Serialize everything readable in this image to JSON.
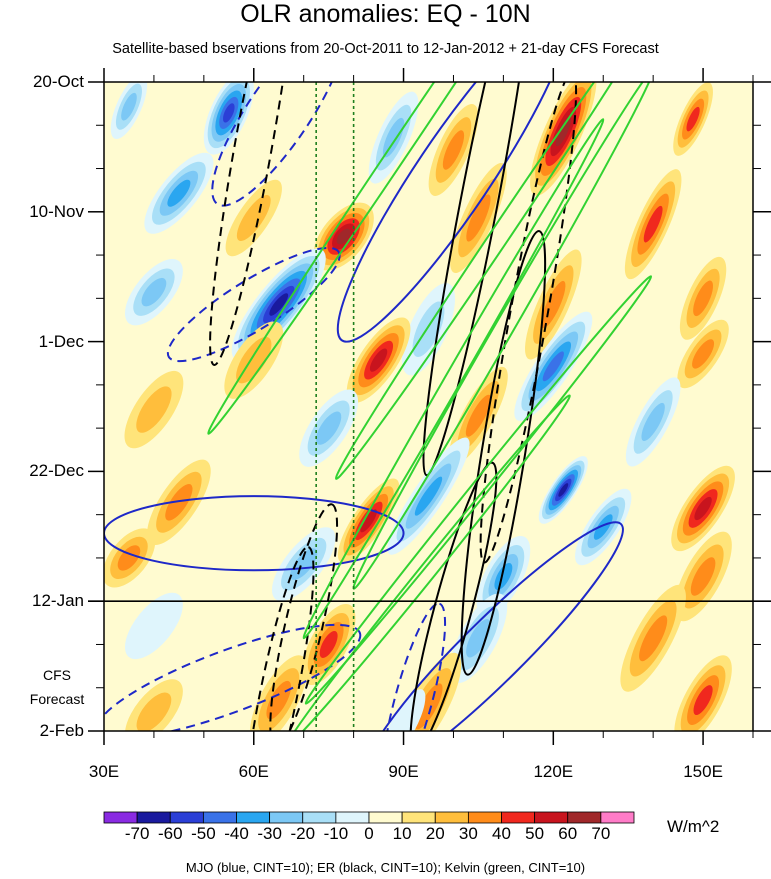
{
  "chart_data": {
    "type": "heatmap",
    "title": "OLR anomalies: EQ - 10N",
    "subtitle": "Satellite-based bservations from 20-Oct-2011 to 12-Jan-2012 + 21-day CFS Forecast",
    "x_axis": {
      "range": [
        30,
        160
      ],
      "ticks": [
        {
          "value": 30,
          "label": "30E"
        },
        {
          "value": 60,
          "label": "60E"
        },
        {
          "value": 90,
          "label": "90E"
        },
        {
          "value": 120,
          "label": "120E"
        },
        {
          "value": 150,
          "label": "150E"
        }
      ],
      "minor_step": 10
    },
    "y_axis": {
      "range_days": [
        0,
        105
      ],
      "direction": "top-to-bottom",
      "ticks": [
        {
          "day": 0,
          "label": "20-Oct"
        },
        {
          "day": 21,
          "label": "10-Nov"
        },
        {
          "day": 42,
          "label": "1-Dec"
        },
        {
          "day": 63,
          "label": "22-Dec"
        },
        {
          "day": 84,
          "label": "12-Jan"
        },
        {
          "day": 105,
          "label": "2-Feb"
        }
      ],
      "minor_step_days": 7
    },
    "forecast_start_day": 84,
    "forecast_label_line1": "CFS",
    "forecast_label_line2": "Forecast",
    "reference_longitudes": [
      72.5,
      80
    ],
    "colorbar": {
      "units": "W/m^2",
      "labels": [
        "-70",
        "-60",
        "-50",
        "-40",
        "-30",
        "-20",
        "-10",
        "0",
        "10",
        "20",
        "30",
        "40",
        "50",
        "60",
        "70"
      ],
      "colors": [
        "#8a2be2",
        "#1a1a9e",
        "#2b3fd6",
        "#3a72e8",
        "#2aa6f0",
        "#7cc8f5",
        "#a9dff7",
        "#dff5fc",
        "#fffbd0",
        "#ffe47a",
        "#ffbe3c",
        "#ff8c1a",
        "#f0281e",
        "#c8141e",
        "#a0282a",
        "#ff7cc8"
      ]
    },
    "anomaly_blobs": [
      {
        "lon": 55,
        "day": 5,
        "a": 9,
        "b": 3,
        "tilt": 0.18,
        "value": -60
      },
      {
        "lon": 35,
        "day": 4,
        "a": 7,
        "b": 2,
        "tilt": 0.18,
        "value": -30
      },
      {
        "lon": 88,
        "day": 9,
        "a": 10,
        "b": 2.5,
        "tilt": 0.18,
        "value": -30
      },
      {
        "lon": 122,
        "day": 8,
        "a": 14,
        "b": 3,
        "tilt": 0.18,
        "value": 60
      },
      {
        "lon": 100,
        "day": 11,
        "a": 10,
        "b": 2.5,
        "tilt": 0.18,
        "value": 30
      },
      {
        "lon": 148,
        "day": 6,
        "a": 8,
        "b": 2,
        "tilt": 0.18,
        "value": 40
      },
      {
        "lon": 45,
        "day": 18,
        "a": 10,
        "b": 3,
        "tilt": 0.1,
        "value": -40
      },
      {
        "lon": 78,
        "day": 25,
        "a": 8,
        "b": 3.5,
        "tilt": 0.1,
        "value": 60
      },
      {
        "lon": 60,
        "day": 22,
        "a": 9,
        "b": 2.5,
        "tilt": 0.12,
        "value": 20
      },
      {
        "lon": 105,
        "day": 22,
        "a": 12,
        "b": 2.5,
        "tilt": 0.18,
        "value": 30
      },
      {
        "lon": 140,
        "day": 23,
        "a": 12,
        "b": 2.5,
        "tilt": 0.18,
        "value": 40
      },
      {
        "lon": 65,
        "day": 36,
        "a": 14,
        "b": 3.5,
        "tilt": 0.1,
        "value": -70
      },
      {
        "lon": 40,
        "day": 34,
        "a": 8,
        "b": 3,
        "tilt": 0.1,
        "value": -30
      },
      {
        "lon": 95,
        "day": 40,
        "a": 10,
        "b": 3,
        "tilt": 0.18,
        "value": -20
      },
      {
        "lon": 120,
        "day": 36,
        "a": 12,
        "b": 2.5,
        "tilt": 0.18,
        "value": 30
      },
      {
        "lon": 150,
        "day": 35,
        "a": 9,
        "b": 2.5,
        "tilt": 0.18,
        "value": 30
      },
      {
        "lon": 85,
        "day": 45,
        "a": 10,
        "b": 3,
        "tilt": 0.12,
        "value": 50
      },
      {
        "lon": 120,
        "day": 46,
        "a": 13,
        "b": 2.8,
        "tilt": 0.12,
        "value": -50
      },
      {
        "lon": 60,
        "day": 45,
        "a": 9,
        "b": 3,
        "tilt": 0.12,
        "value": 20
      },
      {
        "lon": 150,
        "day": 44,
        "a": 8,
        "b": 2.5,
        "tilt": 0.12,
        "value": 30
      },
      {
        "lon": 75,
        "day": 56,
        "a": 9,
        "b": 3,
        "tilt": 0.12,
        "value": -30
      },
      {
        "lon": 40,
        "day": 53,
        "a": 9,
        "b": 3,
        "tilt": 0.12,
        "value": 20
      },
      {
        "lon": 105,
        "day": 54,
        "a": 11,
        "b": 2.5,
        "tilt": 0.15,
        "value": 30
      },
      {
        "lon": 140,
        "day": 55,
        "a": 10,
        "b": 2.5,
        "tilt": 0.15,
        "value": -30
      },
      {
        "lon": 95,
        "day": 67,
        "a": 14,
        "b": 2.5,
        "tilt": 0.12,
        "value": -40
      },
      {
        "lon": 122,
        "day": 66,
        "a": 8,
        "b": 2,
        "tilt": 0.12,
        "value": -70
      },
      {
        "lon": 45,
        "day": 68,
        "a": 10,
        "b": 3,
        "tilt": 0.12,
        "value": 30
      },
      {
        "lon": 83,
        "day": 71,
        "a": 10,
        "b": 2.5,
        "tilt": 0.12,
        "value": 50
      },
      {
        "lon": 150,
        "day": 69,
        "a": 10,
        "b": 3,
        "tilt": 0.12,
        "value": 50
      },
      {
        "lon": 130,
        "day": 72,
        "a": 9,
        "b": 2.5,
        "tilt": 0.12,
        "value": -40
      },
      {
        "lon": 35,
        "day": 77,
        "a": 7,
        "b": 3,
        "tilt": 0.1,
        "value": 30
      },
      {
        "lon": 70,
        "day": 78,
        "a": 9,
        "b": 3,
        "tilt": 0.1,
        "value": -30
      },
      {
        "lon": 110,
        "day": 80,
        "a": 9,
        "b": 3,
        "tilt": 0.15,
        "value": -40
      },
      {
        "lon": 150,
        "day": 80,
        "a": 10,
        "b": 3,
        "tilt": 0.15,
        "value": 30
      },
      {
        "lon": 75,
        "day": 91,
        "a": 9,
        "b": 3,
        "tilt": 0.15,
        "value": 40
      },
      {
        "lon": 105,
        "day": 90,
        "a": 10,
        "b": 3,
        "tilt": 0.15,
        "value": -30
      },
      {
        "lon": 40,
        "day": 88,
        "a": 8,
        "b": 3,
        "tilt": 0.1,
        "value": -10
      },
      {
        "lon": 140,
        "day": 90,
        "a": 12,
        "b": 3,
        "tilt": 0.15,
        "value": 30
      },
      {
        "lon": 65,
        "day": 100,
        "a": 10,
        "b": 3,
        "tilt": 0.15,
        "value": 30
      },
      {
        "lon": 95,
        "day": 101,
        "a": 12,
        "b": 3,
        "tilt": 0.15,
        "value": 30
      },
      {
        "lon": 150,
        "day": 100,
        "a": 10,
        "b": 3,
        "tilt": 0.15,
        "value": 40
      },
      {
        "lon": 40,
        "day": 102,
        "a": 8,
        "b": 3,
        "tilt": 0.1,
        "value": 20
      },
      {
        "lon": 90,
        "day": 104,
        "a": 8,
        "b": 2,
        "tilt": 0.15,
        "value": -10
      }
    ],
    "contours": {
      "MJO": [
        {
          "lon": 65,
          "day": 5,
          "a": 22,
          "b": 5,
          "tilt": 0.12,
          "sign": "neg"
        },
        {
          "lon": 60,
          "day": 36,
          "a": 20,
          "b": 4,
          "tilt": 0.05,
          "sign": "neg"
        },
        {
          "lon": 100,
          "day": 15,
          "a": 40,
          "b": 6,
          "tilt": 0.12,
          "sign": "pos"
        },
        {
          "lon": 60,
          "day": 73,
          "a": 30,
          "b": 6,
          "tilt": 0.0,
          "sign": "pos"
        },
        {
          "lon": 108,
          "day": 92,
          "a": 36,
          "b": 5,
          "tilt": 0.08,
          "sign": "pos"
        },
        {
          "lon": 55,
          "day": 97,
          "a": 28,
          "b": 5,
          "tilt": 0.03,
          "sign": "neg"
        },
        {
          "lon": 92,
          "day": 100,
          "a": 20,
          "b": 3,
          "tilt": 0.3,
          "sign": "neg"
        }
      ],
      "ER": [
        {
          "lon": 60,
          "day": 10,
          "a": 45,
          "b": 3,
          "tilt": 0.45,
          "sign": "neg"
        },
        {
          "lon": 105,
          "day": 20,
          "a": 55,
          "b": 3,
          "tilt": 0.42,
          "sign": "pos"
        },
        {
          "lon": 115,
          "day": 38,
          "a": 50,
          "b": 3,
          "tilt": 0.45,
          "sign": "neg"
        },
        {
          "lon": 110,
          "day": 60,
          "a": 45,
          "b": 3.5,
          "tilt": 0.5,
          "sign": "pos"
        },
        {
          "lon": 70,
          "day": 88,
          "a": 25,
          "b": 3,
          "tilt": 0.35,
          "sign": "neg"
        },
        {
          "lon": 100,
          "day": 85,
          "a": 30,
          "b": 3,
          "tilt": 0.3,
          "sign": "pos"
        },
        {
          "lon": 65,
          "day": 99,
          "a": 30,
          "b": 3,
          "tilt": 0.4,
          "sign": "neg"
        }
      ],
      "Kelvin": [
        {
          "lon": 90,
          "day": 10,
          "a": 70,
          "b": 1.5,
          "tilt": 0.12,
          "sign": "pos"
        },
        {
          "lon": 110,
          "day": 24,
          "a": 60,
          "b": 1.5,
          "tilt": 0.12,
          "sign": "pos"
        },
        {
          "lon": 110,
          "day": 40,
          "a": 60,
          "b": 1.5,
          "tilt": 0.14,
          "sign": "pos"
        },
        {
          "lon": 100,
          "day": 48,
          "a": 60,
          "b": 1.3,
          "tilt": 0.14,
          "sign": "pos"
        },
        {
          "lon": 105,
          "day": 66,
          "a": 55,
          "b": 1.3,
          "tilt": 0.1,
          "sign": "pos"
        },
        {
          "lon": 95,
          "day": 79,
          "a": 45,
          "b": 1.3,
          "tilt": 0.1,
          "sign": "pos"
        }
      ]
    },
    "footnote": "MJO (blue, CINT=10); ER (black, CINT=10); Kelvin (green, CINT=10)",
    "line_colors": {
      "MJO": "#1e28c8",
      "ER": "#000000",
      "Kelvin": "#32d232",
      "reference": "#1e7f1e"
    }
  }
}
